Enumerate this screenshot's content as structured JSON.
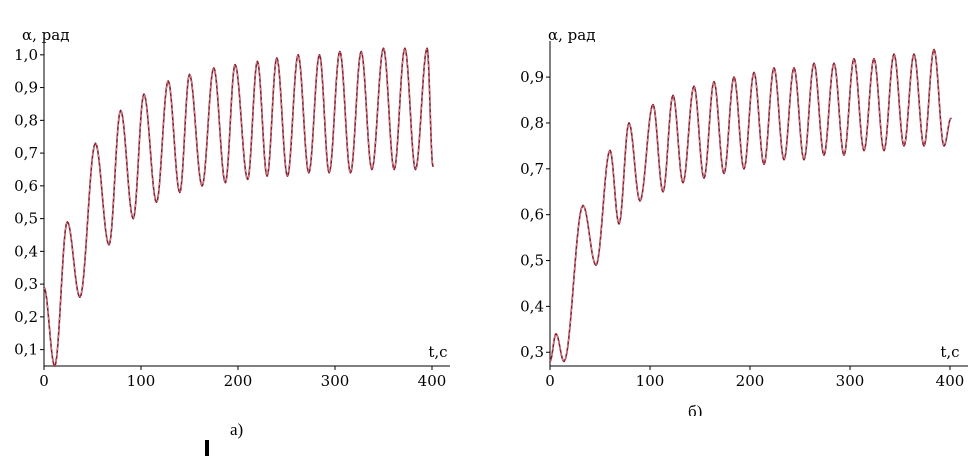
{
  "colors": {
    "curve": "#8b1a2b",
    "axis": "#000000"
  },
  "captions": {
    "left": "а)",
    "right": "б)"
  },
  "chart_data": [
    {
      "type": "line",
      "title": "",
      "ylabel": "α, рад",
      "xlabel": "t,c",
      "xlim": [
        0,
        400
      ],
      "ylim": [
        0.05,
        1.03
      ],
      "x_ticks": [
        0,
        100,
        200,
        300,
        400
      ],
      "x_tick_labels": [
        "0",
        "100",
        "200",
        "300",
        "400"
      ],
      "y_ticks": [
        0.1,
        0.2,
        0.3,
        0.4,
        0.5,
        0.6,
        0.7,
        0.8,
        0.9,
        1.0
      ],
      "y_tick_labels": [
        "0,1",
        "0,2",
        "0,3",
        "0,4",
        "0,5",
        "0,6",
        "0,7",
        "0,8",
        "0,9",
        "1,0"
      ],
      "series": [
        {
          "name": "",
          "x": [
            0,
            11,
            24,
            37,
            53,
            67,
            79,
            92,
            103,
            116,
            128,
            140,
            150,
            163,
            175,
            187,
            197,
            210,
            220,
            230,
            240,
            251,
            262,
            273,
            284,
            294,
            305,
            316,
            327,
            338,
            350,
            361,
            372,
            383,
            395,
            401
          ],
          "y": [
            0.29,
            0.05,
            0.49,
            0.26,
            0.73,
            0.42,
            0.83,
            0.5,
            0.88,
            0.55,
            0.92,
            0.58,
            0.94,
            0.6,
            0.96,
            0.61,
            0.97,
            0.62,
            0.98,
            0.63,
            0.99,
            0.63,
            1.0,
            0.64,
            1.0,
            0.64,
            1.01,
            0.64,
            1.01,
            0.65,
            1.02,
            0.65,
            1.02,
            0.65,
            1.02,
            0.66
          ]
        }
      ]
    },
    {
      "type": "line",
      "title": "",
      "ylabel": "α, рад",
      "xlabel": "t,c",
      "xlim": [
        0,
        400
      ],
      "ylim": [
        0.27,
        0.97
      ],
      "x_ticks": [
        0,
        100,
        200,
        300,
        400
      ],
      "x_tick_labels": [
        "0",
        "100",
        "200",
        "300",
        "400"
      ],
      "y_ticks": [
        0.3,
        0.4,
        0.5,
        0.6,
        0.7,
        0.8,
        0.9
      ],
      "y_tick_labels": [
        "0,3",
        "0,4",
        "0,5",
        "0,6",
        "0,7",
        "0,8",
        "0,9"
      ],
      "series": [
        {
          "name": "",
          "x": [
            0,
            6,
            14,
            33,
            46,
            60,
            69,
            79,
            90,
            103,
            113,
            123,
            133,
            144,
            154,
            164,
            174,
            184,
            194,
            204,
            214,
            224,
            234,
            244,
            254,
            264,
            274,
            284,
            294,
            304,
            314,
            324,
            334,
            344,
            354,
            364,
            374,
            384,
            394,
            401
          ],
          "y": [
            0.28,
            0.34,
            0.28,
            0.62,
            0.49,
            0.74,
            0.58,
            0.8,
            0.63,
            0.84,
            0.65,
            0.86,
            0.67,
            0.88,
            0.68,
            0.89,
            0.69,
            0.9,
            0.7,
            0.91,
            0.71,
            0.92,
            0.72,
            0.92,
            0.72,
            0.93,
            0.73,
            0.93,
            0.73,
            0.94,
            0.74,
            0.94,
            0.74,
            0.95,
            0.75,
            0.95,
            0.75,
            0.96,
            0.75,
            0.81
          ]
        }
      ]
    }
  ]
}
